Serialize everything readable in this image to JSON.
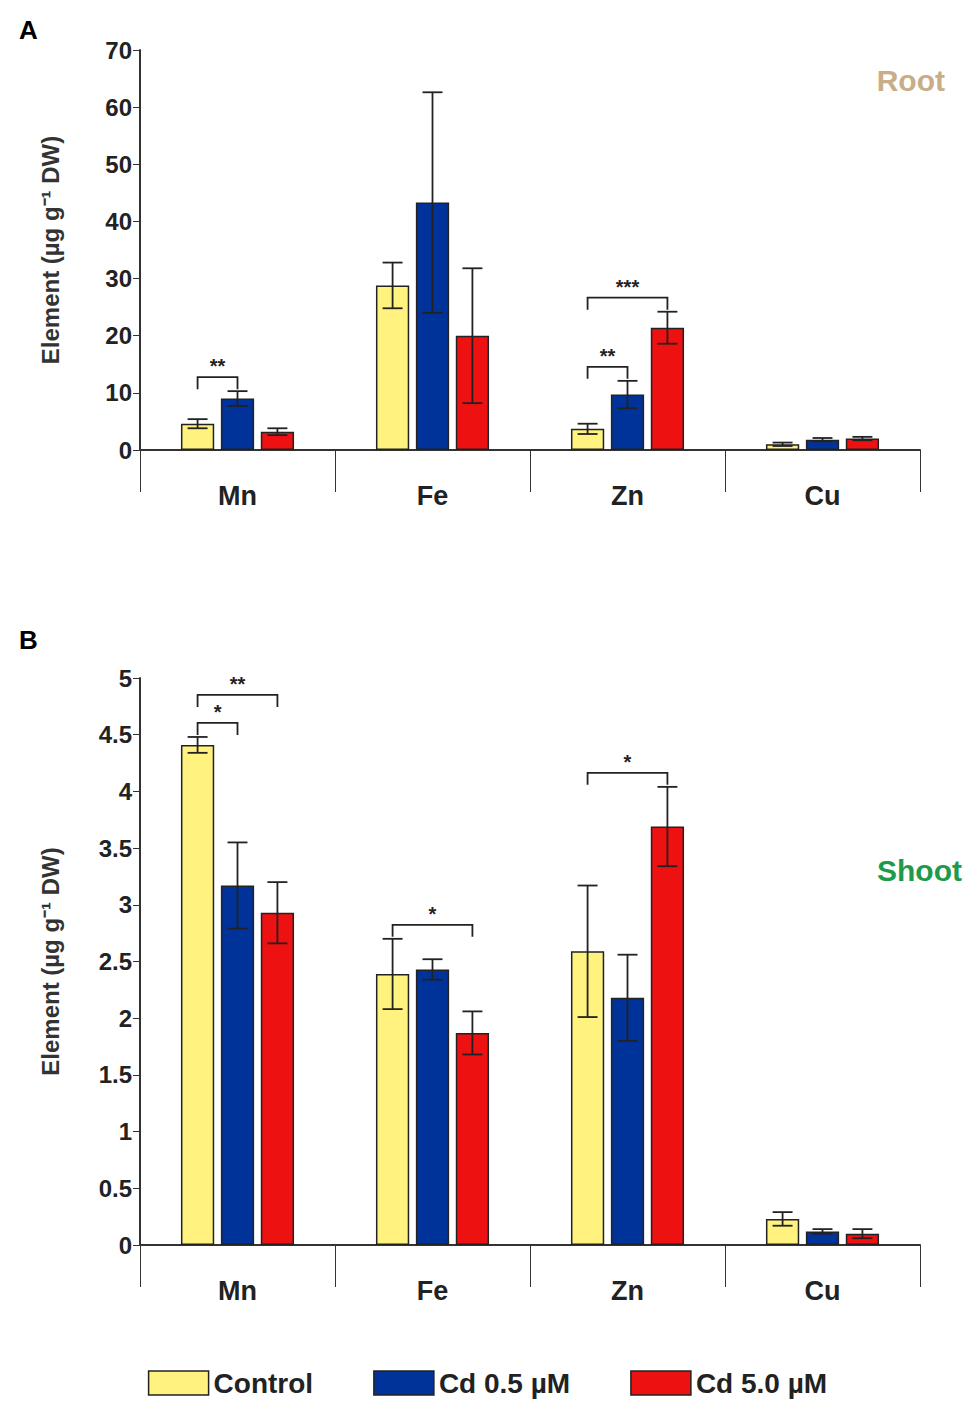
{
  "chart_data": [
    {
      "type": "bar",
      "title": "A",
      "subtitle": "Root",
      "ylabel": "Element (µg g⁻¹ DW)",
      "categories": [
        "Mn",
        "Fe",
        "Zn",
        "Cu"
      ],
      "series": [
        {
          "name": "Control",
          "color": "#FFF27F",
          "values": [
            4.6,
            28.8,
            3.7,
            1.0
          ],
          "errors": [
            0.8,
            4.0,
            0.9,
            0.3
          ]
        },
        {
          "name": "Cd 0.5 µM",
          "color": "#003399",
          "values": [
            9.0,
            43.3,
            9.7,
            1.8
          ],
          "errors": [
            1.3,
            19.3,
            2.4,
            0.3
          ]
        },
        {
          "name": "Cd 5.0 µM",
          "color": "#EE1111",
          "values": [
            3.2,
            20.0,
            21.4,
            2.0
          ],
          "errors": [
            0.6,
            11.8,
            2.8,
            0.3
          ]
        }
      ],
      "ylim": [
        0,
        70
      ],
      "yticks": [
        0,
        10,
        20,
        30,
        40,
        50,
        60,
        70
      ],
      "grid": false,
      "legend": "bottom",
      "annotations": [
        {
          "text": "**",
          "category": "Mn",
          "from": "Control",
          "to": "Cd 0.5 µM"
        },
        {
          "text": "**",
          "category": "Zn",
          "from": "Control",
          "to": "Cd 0.5 µM"
        },
        {
          "text": "***",
          "category": "Zn",
          "from": "Control",
          "to": "Cd 5.0 µM"
        }
      ]
    },
    {
      "type": "bar",
      "title": "B",
      "subtitle": "Shoot",
      "ylabel": "Element (µg g⁻¹ DW)",
      "categories": [
        "Mn",
        "Fe",
        "Zn",
        "Cu"
      ],
      "series": [
        {
          "name": "Control",
          "color": "#FFF27F",
          "values": [
            4.41,
            2.39,
            2.59,
            0.23
          ],
          "errors": [
            0.07,
            0.31,
            0.58,
            0.06
          ]
        },
        {
          "name": "Cd 0.5 µM",
          "color": "#003399",
          "values": [
            3.17,
            2.43,
            2.18,
            0.12
          ],
          "errors": [
            0.38,
            0.09,
            0.38,
            0.02
          ]
        },
        {
          "name": "Cd 5.0 µM",
          "color": "#EE1111",
          "values": [
            2.93,
            1.87,
            3.69,
            0.1
          ],
          "errors": [
            0.27,
            0.19,
            0.35,
            0.04
          ]
        }
      ],
      "ylim": [
        0,
        5
      ],
      "yticks": [
        0,
        0.5,
        1,
        1.5,
        2,
        2.5,
        3,
        3.5,
        4,
        4.5,
        5
      ],
      "grid": false,
      "legend": "bottom",
      "annotations": [
        {
          "text": "*",
          "category": "Mn",
          "from": "Control",
          "to": "Cd 0.5 µM"
        },
        {
          "text": "**",
          "category": "Mn",
          "from": "Control",
          "to": "Cd 5.0 µM"
        },
        {
          "text": "*",
          "category": "Fe",
          "from": "Control",
          "to": "Cd 5.0 µM"
        },
        {
          "text": "*",
          "category": "Zn",
          "from": "Control",
          "to": "Cd 5.0 µM"
        }
      ]
    }
  ]
}
